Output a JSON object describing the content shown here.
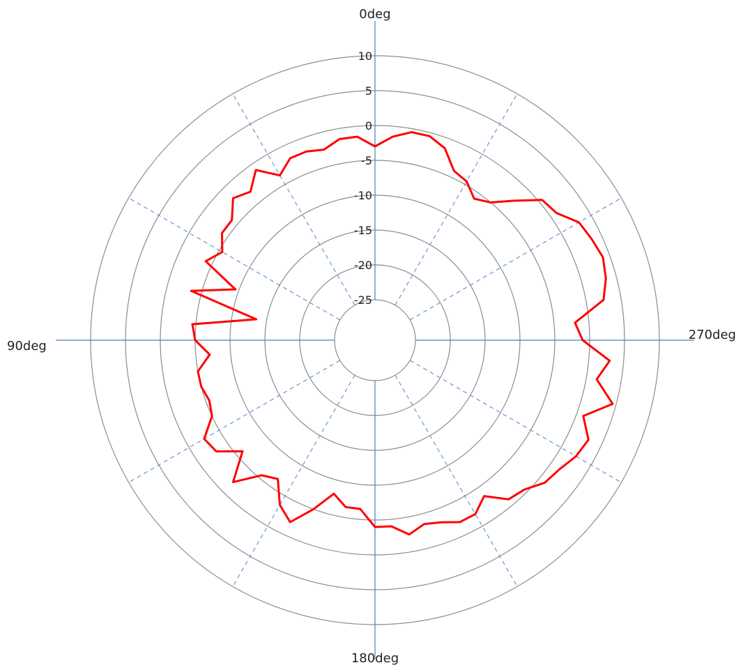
{
  "chart_data": {
    "type": "radar",
    "title": "",
    "angle_labels": [
      "0deg",
      "90deg",
      "180deg",
      "270deg"
    ],
    "angle_label_positions_deg": [
      0,
      90,
      180,
      270
    ],
    "angular_direction": "counterclockwise",
    "zero_at": "top",
    "radial_range": [
      -25,
      10
    ],
    "radial_ticks": [
      -25,
      -20,
      -15,
      -10,
      -5,
      0,
      5,
      10
    ],
    "radial_tick_labels": [
      "-25",
      "-20",
      "-15",
      "-10",
      "-5",
      "0",
      "5",
      "10"
    ],
    "spoke_step_deg": 30,
    "grid": true,
    "legend": "none",
    "series": [
      {
        "name": "",
        "color": "#ff0000",
        "angles_deg": [
          0,
          5,
          10,
          15,
          20,
          25,
          30,
          35,
          40,
          45,
          50,
          55,
          60,
          65,
          70,
          75,
          80,
          85,
          90,
          95,
          100,
          105,
          110,
          115,
          120,
          125,
          130,
          135,
          140,
          145,
          150,
          155,
          160,
          165,
          170,
          175,
          180,
          185,
          190,
          195,
          200,
          205,
          210,
          215,
          220,
          225,
          230,
          235,
          240,
          245,
          250,
          255,
          260,
          265,
          270,
          275,
          280,
          285,
          290,
          295,
          300,
          305,
          310,
          315,
          320,
          325,
          330,
          335,
          340,
          345,
          350,
          355
        ],
        "values": [
          -3.0,
          -1.5,
          -1.5,
          -2.5,
          -2.0,
          -2.0,
          -3.5,
          -1.0,
          -3.0,
          -2.0,
          -4.0,
          -4.0,
          -5.5,
          -4.0,
          -9.5,
          -3.5,
          -13.5,
          -4.5,
          -5.0,
          -7.0,
          -5.0,
          -5.0,
          -5.5,
          -5.0,
          -2.5,
          -3.0,
          -6.0,
          -2.0,
          -5.5,
          -6.5,
          -3.5,
          -2.0,
          -5.0,
          -8.0,
          -6.5,
          -6.5,
          -4.0,
          -4.0,
          -2.5,
          -3.5,
          -3.0,
          -2.0,
          -2.0,
          -3.5,
          -1.0,
          -0.5,
          1.0,
          1.5,
          2.5,
          3.0,
          1.0,
          4.5,
          1.5,
          3.0,
          -1.0,
          -2.0,
          2.5,
          3.5,
          4.0,
          3.5,
          3.0,
          1.0,
          0.5,
          -2.5,
          -5.0,
          -6.0,
          -4.5,
          -4.0,
          -1.5,
          -0.5,
          -0.5,
          -1.5
        ]
      }
    ]
  }
}
